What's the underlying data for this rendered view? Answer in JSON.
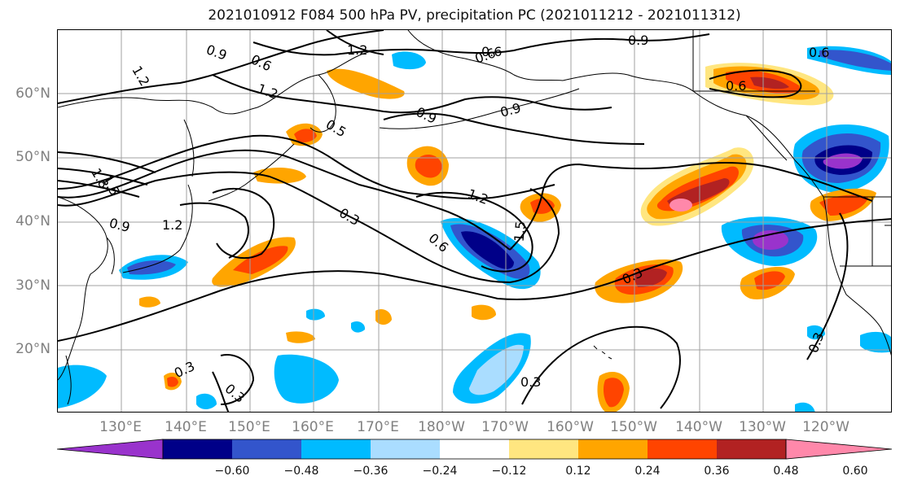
{
  "title": "2021010912 F084 500 hPa PV, precipitation PC (2021011212 - 2021011312)",
  "lat_labels": [
    "60°N",
    "50°N",
    "40°N",
    "30°N",
    "20°N"
  ],
  "lon_labels": [
    "130°E",
    "140°E",
    "150°E",
    "160°E",
    "170°E",
    "180°W",
    "170°W",
    "160°W",
    "150°W",
    "140°W",
    "130°W",
    "120°W"
  ],
  "contour_labels": [
    "1.2",
    "0.9",
    "0.6",
    "1.2",
    "0.6",
    "0.9",
    "0.6",
    "0.6",
    "0.9",
    "1.2",
    "1.5",
    "1.8",
    "0.9",
    "1.2",
    "0.5",
    "0.9",
    "1.2",
    "0.3",
    "0.6",
    "1.5",
    "0.3",
    "0.3",
    "0.3",
    "0.3",
    "0.3",
    "0.6"
  ],
  "colorbar": {
    "colors": [
      "#9933cc",
      "#000088",
      "#3355cc",
      "#00bbff",
      "#aaddff",
      "#ffffff",
      "#ffe680",
      "#ffa500",
      "#ff4400",
      "#b22222",
      "#ff88aa"
    ],
    "ticks": [
      "−0.60",
      "−0.48",
      "−0.36",
      "−0.24",
      "−0.12",
      "0.12",
      "0.24",
      "0.36",
      "0.48",
      "0.60"
    ]
  }
}
